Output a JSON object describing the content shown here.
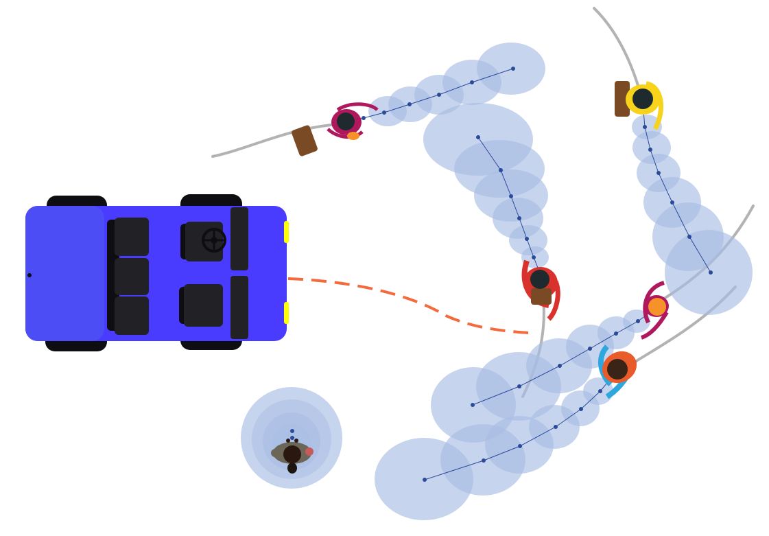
{
  "scene": {
    "type": "pedestrian-trajectory-prediction",
    "vehicle": {
      "body_color": "#4a3cff",
      "cab_color": "#4d4df5",
      "tire_color": "#0d0d12",
      "seat_color": "#222226",
      "headlight_color": "#ffff00"
    },
    "vehicle_planned_path_color": "#f46a3c",
    "observed_history_color": "#b3b3b3",
    "prediction_color": "#a9bde3",
    "prediction_point_color": "#2a4a9a",
    "agents": [
      {
        "id": "agent-yellow-shirt",
        "shirt": "#f7d31c",
        "bag": "#7a4a25"
      },
      {
        "id": "agent-magenta-shirt",
        "shirt": "#b0185e",
        "bag": "#7a4a25"
      },
      {
        "id": "agent-red-shirt",
        "shirt": "#d9312b",
        "bag": "#7a4a25"
      },
      {
        "id": "agent-orange-shirt",
        "shirt": "#b0185e",
        "hair": "#f5932a"
      },
      {
        "id": "agent-blue-shirt",
        "shirt": "#2ea6de",
        "vest": "#ea5b2b"
      },
      {
        "id": "agent-standing",
        "shirt": "#6b6658"
      }
    ]
  }
}
